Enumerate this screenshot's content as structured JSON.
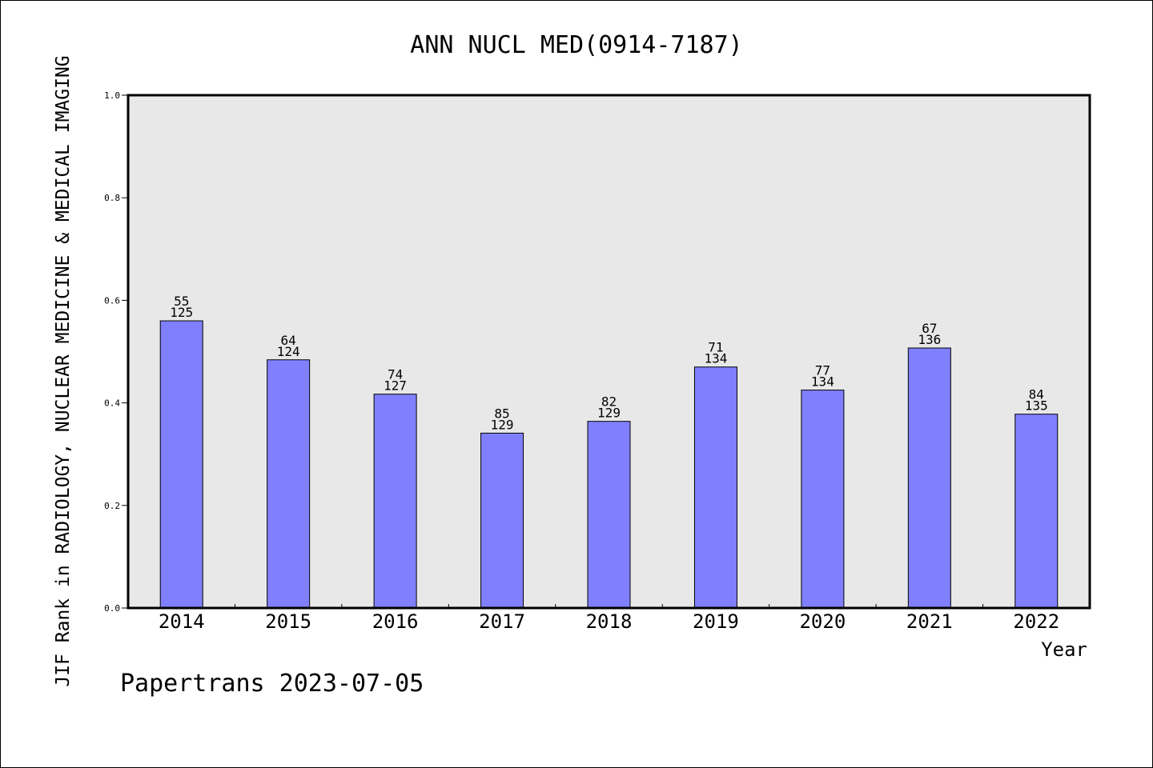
{
  "chart_data": {
    "type": "bar",
    "title": "ANN NUCL MED(0914-7187)",
    "xlabel": "Year",
    "ylabel": "JIF Rank in RADIOLOGY, NUCLEAR MEDICINE & MEDICAL IMAGING",
    "footer": "Papertrans 2023-07-05",
    "categories": [
      "2014",
      "2015",
      "2016",
      "2017",
      "2018",
      "2019",
      "2020",
      "2021",
      "2022"
    ],
    "values": [
      0.56,
      0.484,
      0.417,
      0.341,
      0.364,
      0.47,
      0.425,
      0.507,
      0.378
    ],
    "rank": [
      "55",
      "64",
      "74",
      "85",
      "82",
      "71",
      "77",
      "67",
      "84"
    ],
    "total": [
      "125",
      "124",
      "127",
      "129",
      "129",
      "134",
      "134",
      "136",
      "135"
    ],
    "ylim": [
      0,
      1.0
    ],
    "yticks": [
      "0.0",
      "0.2",
      "0.4",
      "0.6",
      "0.8",
      "1.0"
    ],
    "grid": false,
    "colors": {
      "bar": "#8080ff",
      "plot_bg": "#e8e8e8",
      "axis": "#000000"
    }
  }
}
